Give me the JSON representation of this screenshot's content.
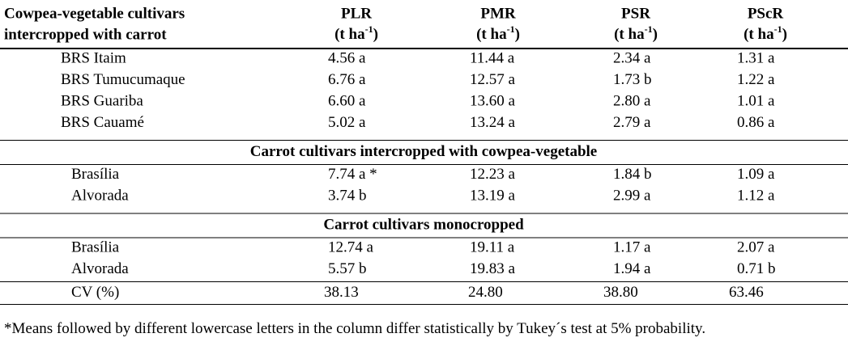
{
  "header": {
    "first_column": [
      "Cowpea-vegetable cultivars",
      "intercropped with carrot"
    ],
    "columns": [
      {
        "name": "PLR",
        "unit": "(t ha",
        "exponent": "-1",
        "close": ")"
      },
      {
        "name": "PMR",
        "unit": "(t ha",
        "exponent": "-1",
        "close": ")"
      },
      {
        "name": "PSR",
        "unit": "(t ha",
        "exponent": "-1",
        "close": ")"
      },
      {
        "name": "PScR",
        "unit": "(t ha",
        "exponent": "-1",
        "close": ")"
      }
    ]
  },
  "groups": [
    {
      "rows": [
        [
          "BRS Itaim",
          "4.56 a",
          "11.44 a",
          "2.34 a",
          "1.31 a"
        ],
        [
          "BRS Tumucumaque",
          "6.76 a",
          "12.57 a",
          "1.73 b",
          "1.22 a"
        ],
        [
          "BRS Guariba",
          "6.60 a",
          "13.60 a",
          "2.80 a",
          "1.01 a"
        ],
        [
          "BRS Cauamé",
          "5.02 a",
          "13.24 a",
          "2.79 a",
          "0.86 a"
        ]
      ]
    },
    {
      "title": "Carrot cultivars intercropped with cowpea-vegetable",
      "rows": [
        [
          "Brasília",
          "7.74 a *",
          "12.23 a",
          "1.84 b",
          "1.09 a"
        ],
        [
          "Alvorada",
          "3.74 b",
          "13.19 a",
          "2.99 a",
          "1.12 a"
        ]
      ]
    },
    {
      "title": "Carrot cultivars monocropped",
      "rows": [
        [
          "Brasília",
          "12.74 a",
          "19.11 a",
          "1.17 a",
          "2.07 a"
        ],
        [
          "Alvorada",
          "5.57 b",
          "19.83 a",
          "1.94 a",
          "0.71 b"
        ]
      ]
    }
  ],
  "cv": [
    "CV (%)",
    "38.13",
    "24.80",
    "38.80",
    "63.46"
  ],
  "footnote": "*Means followed by different lowercase letters in the column differ statistically by Tukey´s test at 5% probability."
}
